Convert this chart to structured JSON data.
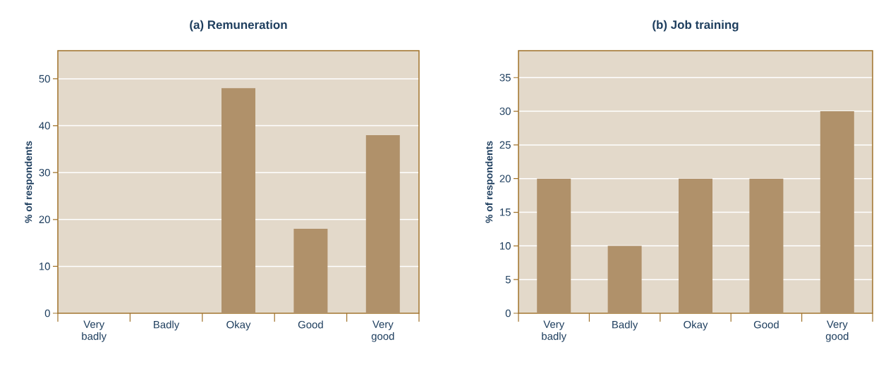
{
  "chart_data": [
    {
      "type": "bar",
      "title": "(a) Remuneration",
      "ylabel": "% of respondents",
      "categories": [
        "Very badly",
        "Badly",
        "Okay",
        "Good",
        "Very good"
      ],
      "values": [
        0,
        0,
        48,
        18,
        38
      ],
      "color": "#b0916a",
      "ylim": [
        0,
        56
      ],
      "yticks": [
        0,
        10,
        20,
        30,
        40,
        50
      ],
      "grid": "y"
    },
    {
      "type": "bar",
      "title": "(b) Job training",
      "ylabel": "% of respondents",
      "categories": [
        "Very badly",
        "Badly",
        "Okay",
        "Good",
        "Very good"
      ],
      "values": [
        20,
        10,
        20,
        20,
        30
      ],
      "color": "#b0916a",
      "ylim": [
        0,
        39
      ],
      "yticks": [
        0,
        5,
        10,
        15,
        20,
        25,
        30,
        35
      ],
      "grid": "y"
    }
  ]
}
